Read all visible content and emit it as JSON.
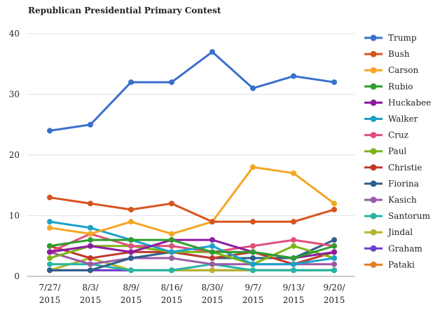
{
  "chart_data": {
    "type": "line",
    "title": "Republican Presidential Primary Contest",
    "xlabel": "",
    "ylabel": "",
    "ylim": [
      0,
      40
    ],
    "yticks": [
      0,
      10,
      20,
      30,
      40
    ],
    "grid": true,
    "legend_position": "right",
    "categories": [
      [
        "7/27/",
        "2015"
      ],
      [
        "8/3/",
        "2015"
      ],
      [
        "8/9/",
        "2015"
      ],
      [
        "8/16/",
        "2015"
      ],
      [
        "8/30/",
        "2015"
      ],
      [
        "9/7/",
        "2015"
      ],
      [
        "9/13/",
        "2015"
      ],
      [
        "9/20/",
        "2015"
      ]
    ],
    "series": [
      {
        "name": "Trump",
        "color": "#3a6fcf",
        "values": [
          24,
          25,
          32,
          32,
          37,
          31,
          33,
          32
        ]
      },
      {
        "name": "Bush",
        "color": "#d9531e",
        "values": [
          13,
          12,
          11,
          12,
          9,
          9,
          9,
          11
        ]
      },
      {
        "name": "Carson",
        "color": "#f5a623",
        "values": [
          8,
          7,
          9,
          7,
          9,
          18,
          17,
          12
        ]
      },
      {
        "name": "Rubio",
        "color": "#2e9e2e",
        "values": [
          5,
          6,
          6,
          6,
          4,
          4,
          3,
          5
        ]
      },
      {
        "name": "Huckabee",
        "color": "#8e1aa0",
        "values": [
          4,
          5,
          4,
          6,
          6,
          4,
          3,
          4
        ]
      },
      {
        "name": "Walker",
        "color": "#1ba1c9",
        "values": [
          9,
          8,
          6,
          4,
          5,
          2,
          2,
          3
        ]
      },
      {
        "name": "Cruz",
        "color": "#e0507a",
        "values": [
          4,
          7,
          5,
          5,
          4,
          5,
          6,
          5
        ]
      },
      {
        "name": "Paul",
        "color": "#7cb518",
        "values": [
          3,
          5,
          5,
          4,
          4,
          2,
          5,
          3
        ]
      },
      {
        "name": "Christie",
        "color": "#c0392b",
        "values": [
          5,
          3,
          4,
          4,
          3,
          4,
          2,
          4
        ]
      },
      {
        "name": "Fiorina",
        "color": "#2c5f8a",
        "values": [
          1,
          1,
          3,
          4,
          3,
          3,
          3,
          6
        ]
      },
      {
        "name": "Kasich",
        "color": "#9b59a6",
        "values": [
          4,
          2,
          3,
          3,
          2,
          2,
          2,
          2
        ]
      },
      {
        "name": "Santorum",
        "color": "#26b5a5",
        "values": [
          2,
          2,
          1,
          1,
          2,
          1,
          1,
          1
        ]
      },
      {
        "name": "Jindal",
        "color": "#b5b52a",
        "values": [
          1,
          3,
          1,
          1,
          1,
          1,
          1,
          1
        ]
      },
      {
        "name": "Graham",
        "color": "#6a3fd1",
        "values": [
          1,
          1,
          1,
          1,
          1,
          1,
          1,
          1
        ]
      },
      {
        "name": "Pataki",
        "color": "#e67e22",
        "values": [
          1,
          1,
          1,
          1,
          1,
          1,
          1,
          1
        ]
      }
    ]
  }
}
